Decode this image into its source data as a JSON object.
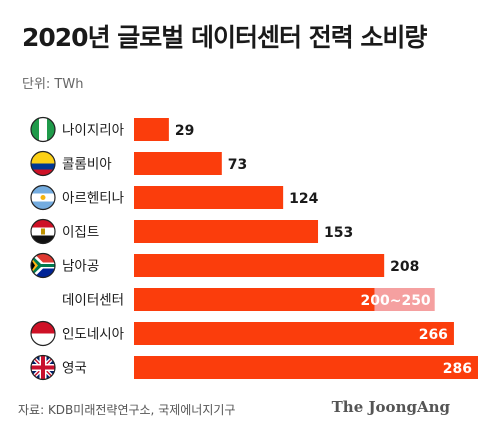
{
  "header": {
    "title": "2020년 글로벌 데이터센터 전력 소비량",
    "unit": "단위: TWh"
  },
  "footer": {
    "source": "자료: KDB미래전략연구소, 국제에너지기구",
    "brand": "The JoongAng"
  },
  "colors": {
    "bar": "#fb3d0c",
    "range_bar": "#f5a0a0",
    "flag_stroke": "#222222"
  },
  "chart_data": {
    "type": "bar",
    "orientation": "horizontal",
    "title": "2020년 글로벌 데이터센터 전력 소비량",
    "unit": "TWh",
    "xlim": [
      0,
      286
    ],
    "grid": false,
    "legend": "none",
    "items": [
      {
        "name": "나이지리아",
        "value": 29,
        "label": "29",
        "flag": "nigeria-flag-icon"
      },
      {
        "name": "콜롬비아",
        "value": 73,
        "label": "73",
        "flag": "colombia-flag-icon"
      },
      {
        "name": "아르헨티나",
        "value": 124,
        "label": "124",
        "flag": "argentina-flag-icon"
      },
      {
        "name": "이집트",
        "value": 153,
        "label": "153",
        "flag": "egypt-flag-icon"
      },
      {
        "name": "남아공",
        "value": 208,
        "label": "208",
        "flag": "south-africa-flag-icon"
      },
      {
        "name": "데이터센터",
        "value": 200,
        "value_high": 250,
        "label": "200~250",
        "flag": ""
      },
      {
        "name": "인도네시아",
        "value": 266,
        "label": "266",
        "flag": "indonesia-flag-icon"
      },
      {
        "name": "영국",
        "value": 286,
        "label": "286",
        "flag": "uk-flag-icon"
      }
    ]
  }
}
